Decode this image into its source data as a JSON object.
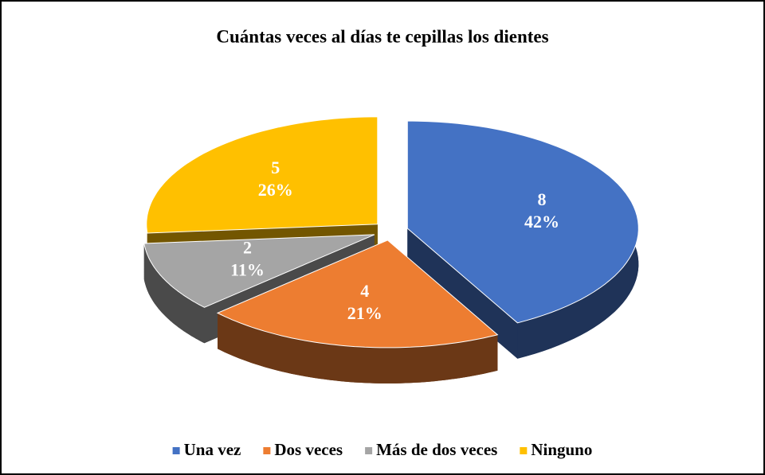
{
  "chart_data": {
    "type": "pie3d",
    "title": "Cuántas veces al días te cepillas los dientes",
    "categories": [
      "Una vez",
      "Dos veces",
      "Más de dos veces",
      "Ninguno"
    ],
    "values": [
      8,
      4,
      2,
      5
    ],
    "percent_labels": [
      "42%",
      "21%",
      "11%",
      "26%"
    ],
    "colors": [
      "#4472c4",
      "#ed7d31",
      "#a5a5a5",
      "#ffc000"
    ],
    "legend": "bottom"
  }
}
